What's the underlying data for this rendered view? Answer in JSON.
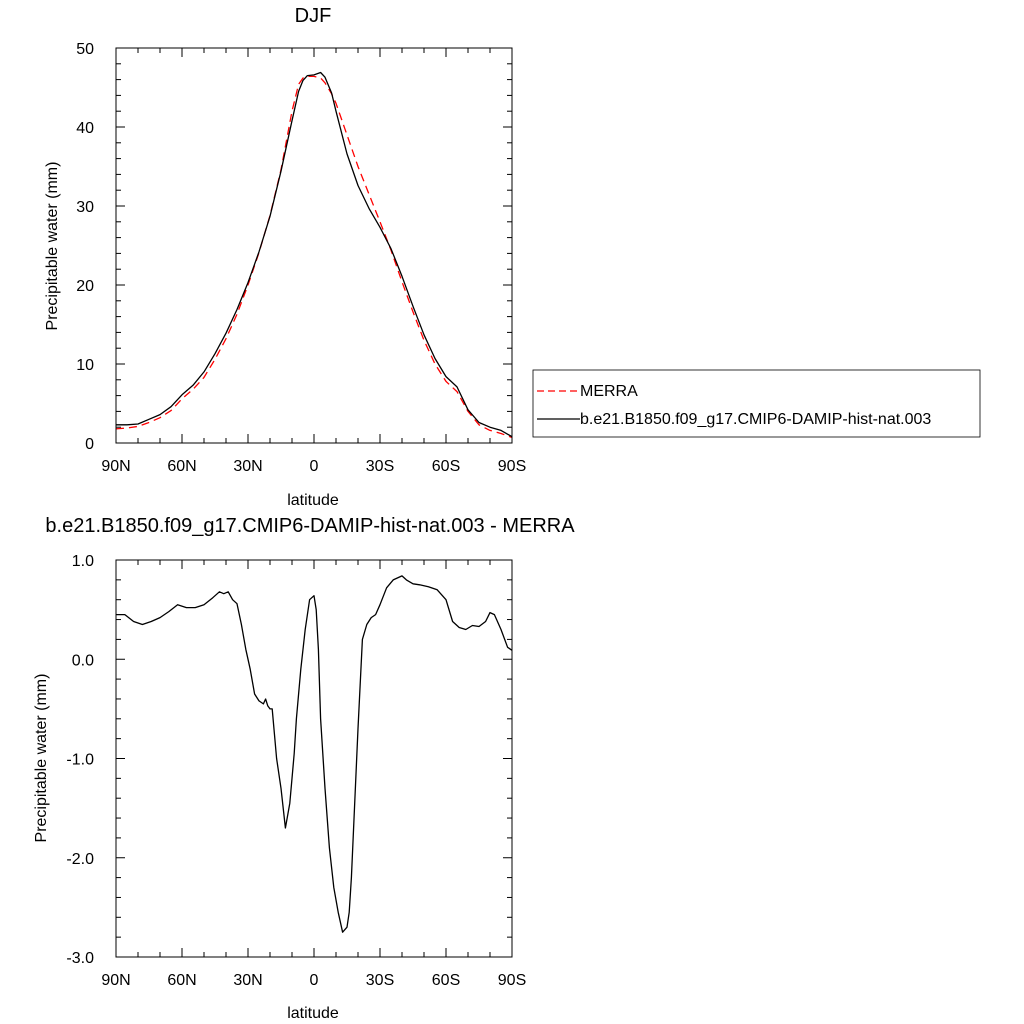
{
  "chart_data": [
    {
      "type": "line",
      "title": "DJF",
      "xlabel": "latitude",
      "ylabel": "Precipitable water (mm)",
      "xlim": [
        90,
        -90
      ],
      "ylim": [
        0,
        50
      ],
      "x_ticks": [
        90,
        60,
        30,
        0,
        -30,
        -60,
        -90
      ],
      "x_tick_labels": [
        "90N",
        "60N",
        "30N",
        "0",
        "30S",
        "60S",
        "90S"
      ],
      "y_ticks": [
        0,
        10,
        20,
        30,
        40,
        50
      ],
      "y_tick_labels": [
        "0",
        "10",
        "20",
        "30",
        "40",
        "50"
      ],
      "legend_position": "right",
      "series": [
        {
          "name": "MERRA",
          "color": "#ff0000",
          "dash": "dashed",
          "x": [
            90,
            85,
            80,
            75,
            70,
            65,
            60,
            55,
            50,
            45,
            40,
            35,
            30,
            25,
            20,
            15,
            10,
            7,
            5,
            3,
            0,
            -3,
            -5,
            -8,
            -10,
            -15,
            -20,
            -25,
            -30,
            -35,
            -40,
            -45,
            -50,
            -55,
            -60,
            -65,
            -70,
            -75,
            -80,
            -85,
            -90
          ],
          "values": [
            1.8,
            1.9,
            2.1,
            2.6,
            3.2,
            4.1,
            5.6,
            6.8,
            8.3,
            10.6,
            13.2,
            16.3,
            20.0,
            24.1,
            28.8,
            34.6,
            42.0,
            45.4,
            46.2,
            46.4,
            46.4,
            46.2,
            45.6,
            44.2,
            43.0,
            39.0,
            35.0,
            31.5,
            28.0,
            24.4,
            20.4,
            16.6,
            13.0,
            10.0,
            7.8,
            6.5,
            4.0,
            2.3,
            1.6,
            1.2,
            0.7
          ]
        },
        {
          "name": "b.e21.B1850.f09_g17.CMIP6-DAMIP-hist-nat.003",
          "color": "#000000",
          "dash": "solid",
          "x": [
            90,
            85,
            80,
            75,
            70,
            65,
            60,
            55,
            50,
            45,
            40,
            35,
            30,
            25,
            20,
            15,
            10,
            7,
            5,
            3,
            0,
            -3,
            -5,
            -8,
            -10,
            -15,
            -20,
            -25,
            -30,
            -35,
            -40,
            -45,
            -50,
            -55,
            -60,
            -65,
            -70,
            -75,
            -80,
            -85,
            -90
          ],
          "values": [
            2.3,
            2.3,
            2.4,
            3.0,
            3.6,
            4.6,
            6.1,
            7.3,
            9.0,
            11.3,
            13.9,
            16.9,
            20.3,
            24.2,
            28.7,
            34.4,
            40.8,
            44.5,
            45.9,
            46.5,
            46.6,
            46.9,
            46.3,
            44.3,
            42.0,
            36.6,
            32.6,
            29.7,
            27.3,
            24.6,
            21.1,
            17.3,
            13.7,
            10.7,
            8.4,
            7.1,
            4.2,
            2.6,
            2.0,
            1.6,
            0.8
          ]
        }
      ]
    },
    {
      "type": "line",
      "title": "b.e21.B1850.f09_g17.CMIP6-DAMIP-hist-nat.003 - MERRA",
      "xlabel": "latitude",
      "ylabel": "Precipitable water (mm)",
      "xlim": [
        90,
        -90
      ],
      "ylim": [
        -3.0,
        1.0
      ],
      "x_ticks": [
        90,
        60,
        30,
        0,
        -30,
        -60,
        -90
      ],
      "x_tick_labels": [
        "90N",
        "60N",
        "30N",
        "0",
        "30S",
        "60S",
        "90S"
      ],
      "y_ticks": [
        1.0,
        0.0,
        -1.0,
        -2.0,
        -3.0
      ],
      "y_tick_labels": [
        "1.0",
        "0.0",
        "-1.0",
        "-2.0",
        "-3.0"
      ],
      "series": [
        {
          "color": "#000000",
          "dash": "solid",
          "x": [
            90,
            86,
            82,
            78,
            74,
            70,
            66,
            62,
            58,
            54,
            50,
            46,
            43,
            41,
            39,
            37,
            35,
            33,
            31,
            29,
            27,
            25,
            23,
            22,
            21,
            20,
            19,
            18,
            17,
            15,
            13,
            11,
            10,
            9,
            8,
            6,
            4,
            2,
            0,
            -1,
            -2,
            -3,
            -5,
            -7,
            -9,
            -11,
            -13,
            -15,
            -16,
            -17,
            -18,
            -19,
            -20,
            -22,
            -24,
            -26,
            -28,
            -30,
            -33,
            -36,
            -40,
            -42,
            -45,
            -48,
            -52,
            -56,
            -60,
            -63,
            -66,
            -69,
            -72,
            -75,
            -78,
            -80,
            -82,
            -85,
            -88,
            -90
          ],
          "values": [
            0.45,
            0.45,
            0.38,
            0.35,
            0.38,
            0.42,
            0.48,
            0.55,
            0.52,
            0.52,
            0.55,
            0.62,
            0.68,
            0.66,
            0.68,
            0.6,
            0.56,
            0.35,
            0.1,
            -0.1,
            -0.35,
            -0.42,
            -0.45,
            -0.4,
            -0.47,
            -0.5,
            -0.5,
            -0.75,
            -1.0,
            -1.3,
            -1.7,
            -1.45,
            -1.2,
            -0.95,
            -0.6,
            -0.1,
            0.3,
            0.6,
            0.64,
            0.5,
            0.1,
            -0.6,
            -1.3,
            -1.9,
            -2.3,
            -2.55,
            -2.75,
            -2.7,
            -2.55,
            -2.2,
            -1.7,
            -1.2,
            -0.7,
            0.2,
            0.35,
            0.42,
            0.45,
            0.55,
            0.72,
            0.8,
            0.84,
            0.8,
            0.76,
            0.75,
            0.73,
            0.7,
            0.6,
            0.38,
            0.32,
            0.3,
            0.34,
            0.33,
            0.38,
            0.47,
            0.45,
            0.3,
            0.12,
            0.09
          ]
        }
      ]
    }
  ]
}
